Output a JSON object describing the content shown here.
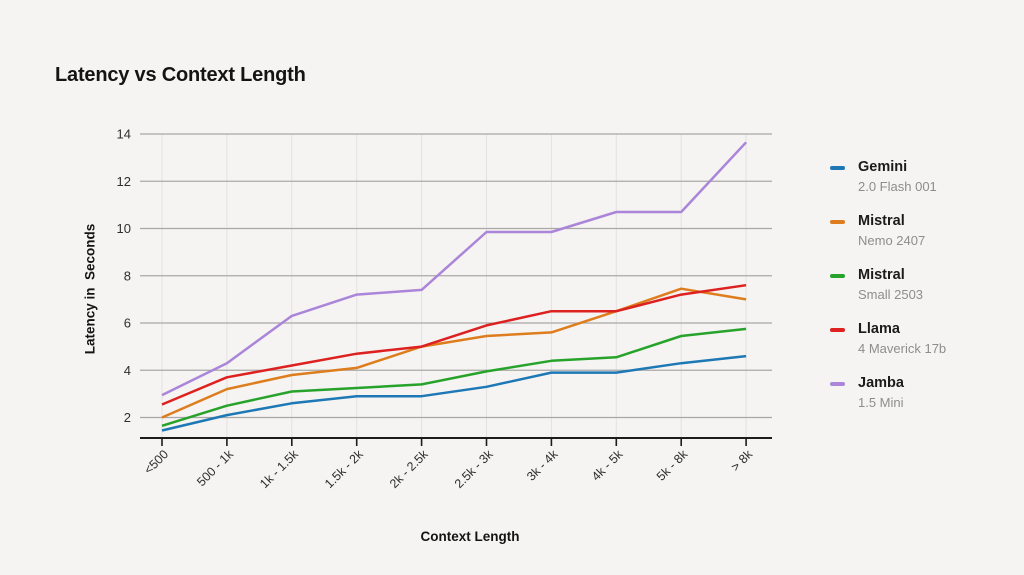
{
  "page": {
    "background": "#f5f4f2"
  },
  "chart_data": {
    "type": "line",
    "title": "Latency vs Context Length",
    "xlabel": "Context Length",
    "ylabel": "Latency in  Seconds",
    "categories": [
      "<500",
      "500 - 1k",
      "1k - 1.5k",
      "1.5k - 2k",
      "2k - 2.5k",
      "2.5k - 3k",
      "3k - 4k",
      "4k - 5k",
      "5k - 8k",
      "> 8k"
    ],
    "yticks": [
      2,
      4,
      6,
      8,
      10,
      12,
      14
    ],
    "ylim": [
      1.1,
      14.4
    ],
    "grid": true,
    "legend_position": "right",
    "series": [
      {
        "name": "Gemini",
        "subtitle": "2.0 Flash 001",
        "color": "#1d78b5",
        "values": [
          1.45,
          2.1,
          2.6,
          2.9,
          2.9,
          3.3,
          3.9,
          3.9,
          4.3,
          4.6
        ]
      },
      {
        "name": "Mistral",
        "subtitle": "Nemo 2407",
        "color": "#de7d1d",
        "values": [
          2.0,
          3.2,
          3.8,
          4.1,
          5.0,
          5.45,
          5.6,
          6.5,
          7.45,
          7.0
        ]
      },
      {
        "name": "Mistral",
        "subtitle": "Small 2503",
        "color": "#27a32b",
        "values": [
          1.65,
          2.5,
          3.1,
          3.25,
          3.4,
          3.95,
          4.4,
          4.55,
          5.45,
          5.75
        ]
      },
      {
        "name": "Llama",
        "subtitle": "4 Maverick 17b",
        "color": "#dd2020",
        "values": [
          2.55,
          3.7,
          4.2,
          4.7,
          5.0,
          5.9,
          6.5,
          6.5,
          7.2,
          7.6
        ]
      },
      {
        "name": "Jamba",
        "subtitle": "1.5 Mini",
        "color": "#ab85d9",
        "values": [
          2.95,
          4.3,
          6.3,
          7.2,
          7.4,
          9.85,
          9.85,
          10.7,
          10.7,
          13.65
        ]
      }
    ],
    "style": {
      "h_grid_color": "#a9a8a6",
      "v_grid_color": "#e4e2df",
      "axis_color": "#1c1c1c",
      "tick_text_color": "#2e2e2e",
      "line_width": 2.5
    }
  }
}
